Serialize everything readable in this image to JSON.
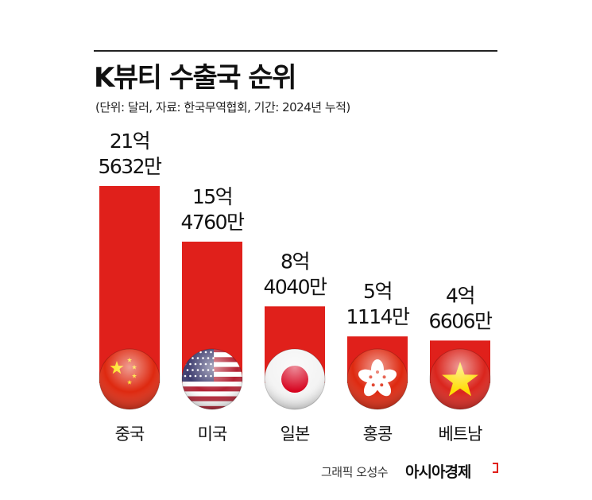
{
  "title": "K뷰티 수출국 순위",
  "subtitle": "(단위: 달러, 자료: 한국무역협회, 기간: 2024년 누적)",
  "credit": {
    "graphic": "그래픽 오성수",
    "brand": "아시아경제"
  },
  "colors": {
    "bar": "#e0201b",
    "text": "#111111"
  },
  "chart_data": {
    "type": "bar",
    "title": "K뷰티 수출국 순위",
    "subtitle": "(단위: 달러, 자료: 한국무역협회, 기간: 2024년 누적)",
    "unit": "달러",
    "categories": [
      "중국",
      "미국",
      "일본",
      "홍콩",
      "베트남"
    ],
    "values": [
      2156320000,
      1547600000,
      840400000,
      511140000,
      466060000
    ],
    "value_labels": [
      [
        "21억",
        "5632만"
      ],
      [
        "15억",
        "4760만"
      ],
      [
        "8억",
        "4040만"
      ],
      [
        "5억",
        "1114만"
      ],
      [
        "4억",
        "6606만"
      ]
    ],
    "flags": [
      "china-flag-icon",
      "usa-flag-icon",
      "japan-flag-icon",
      "hongkong-flag-icon",
      "vietnam-flag-icon"
    ],
    "ylim": [
      0,
      2156320000
    ],
    "grid": false,
    "legend": "none"
  }
}
